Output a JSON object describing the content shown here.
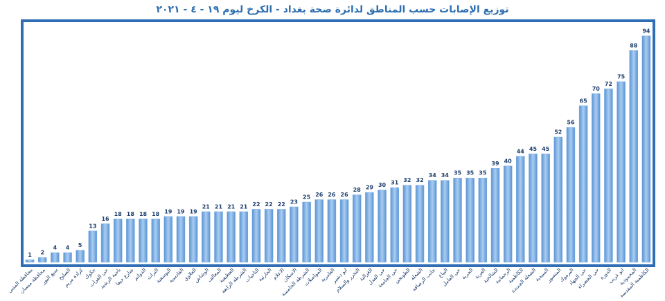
{
  "chart_data": {
    "type": "bar",
    "title": "توزيع الإصابات حسب المناطق لدائرة صحة بغداد - الكرخ ليوم ١٩ - ٤ - ٢٠٢١",
    "categories": [
      "محافظة المثنى",
      "محافظة ميسان",
      "سبع البور",
      "الصليخ",
      "كرادة مريم",
      "جكوك",
      "حي الفرات",
      "ناحية الرشيد",
      "شارع حيفا",
      "الدوانم",
      "التراث",
      "اليوسفية",
      "القادسية",
      "العلاوي",
      "الوشاش",
      "المعالف",
      "العطيفية",
      "الشرطة الرابعة",
      "التاجيات",
      "الحارثية",
      "الاعلام",
      "الاسكان",
      "الشرطة الخامسة",
      "المواصلات",
      "العامرية",
      "ابو دشير",
      "التحرر والسلام",
      "الغزالية",
      "حي العدل",
      "حي الجامعة",
      "الطوبجي",
      "الشعلة",
      "جانب الرصافة",
      "البياع",
      "حي العامل",
      "الحرية",
      "العربة",
      "الشالجية",
      "الرحمانية",
      "الكاظمية",
      "الشعلة الجديدة",
      "السيدية",
      "المنصور",
      "اليرموك",
      "حي الجهاد",
      "حي الخضراء",
      "الدورة",
      "ابو غريب",
      "المحمودية",
      "الكاظمية المقدسة"
    ],
    "values": [
      1,
      2,
      4,
      4,
      5,
      13,
      16,
      18,
      18,
      18,
      18,
      19,
      19,
      19,
      21,
      21,
      21,
      21,
      22,
      22,
      22,
      23,
      25,
      26,
      26,
      26,
      28,
      29,
      30,
      31,
      32,
      32,
      34,
      34,
      35,
      35,
      35,
      39,
      40,
      44,
      45,
      45,
      52,
      56,
      65,
      70,
      72,
      75,
      88,
      94
    ],
    "color": "#7aaee3",
    "ylim": [
      0,
      100
    ]
  }
}
